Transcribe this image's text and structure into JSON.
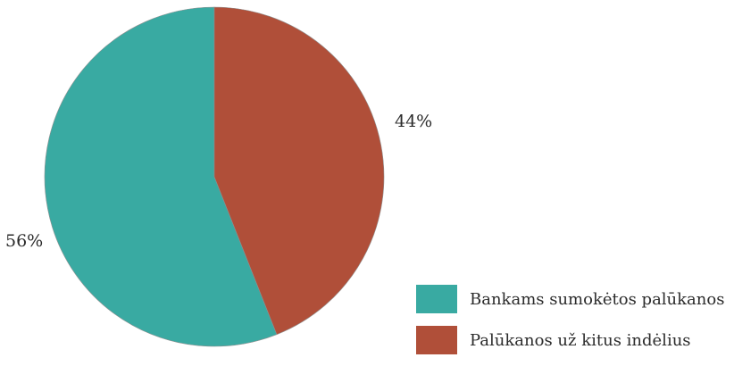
{
  "chart_data": {
    "type": "pie",
    "slices": [
      {
        "label": "Bankams sumokėtos palūkanos",
        "value": 56,
        "value_label": "56%",
        "color": "#39aaa2"
      },
      {
        "label": "Palūkanos už kitus indėlius",
        "value": 44,
        "value_label": "44%",
        "color": "#b04f39"
      }
    ],
    "start_angle_deg": 0,
    "direction": "counterclockwise",
    "legend_position": "bottom-right",
    "units": "%"
  }
}
